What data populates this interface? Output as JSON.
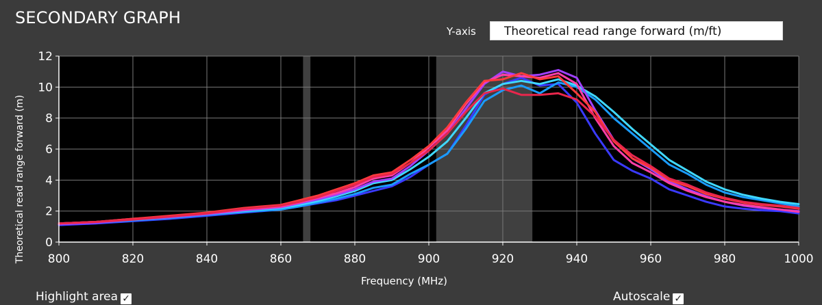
{
  "panel": {
    "title": "SECONDARY GRAPH",
    "yaxis_label": "Y-axis",
    "yaxis_selected": "Theoretical read range forward (m/ft)",
    "highlight_label": "Highlight area",
    "highlight_checked": true,
    "autoscale_label": "Autoscale",
    "autoscale_checked": true
  },
  "chart_data": {
    "type": "line",
    "xlabel": "Frequency (MHz)",
    "ylabel": "Theoretical read range forward (m)",
    "xlim": [
      800,
      1000
    ],
    "ylim": [
      0,
      12
    ],
    "xticks": [
      800,
      820,
      840,
      860,
      880,
      900,
      920,
      940,
      960,
      980,
      1000
    ],
    "yticks": [
      0,
      2,
      4,
      6,
      8,
      10,
      12
    ],
    "grid": true,
    "highlight_bands": [
      [
        866,
        868
      ],
      [
        902,
        928
      ]
    ],
    "x": [
      800,
      810,
      820,
      830,
      840,
      850,
      860,
      865,
      870,
      875,
      880,
      885,
      890,
      895,
      900,
      905,
      910,
      915,
      920,
      925,
      930,
      935,
      940,
      945,
      950,
      955,
      960,
      965,
      970,
      975,
      980,
      985,
      990,
      995,
      1000
    ],
    "series": [
      {
        "color": "#3a3aff",
        "values": [
          1.1,
          1.2,
          1.35,
          1.5,
          1.7,
          1.9,
          2.1,
          2.3,
          2.5,
          2.7,
          3.0,
          3.3,
          3.6,
          4.2,
          5.0,
          5.7,
          7.5,
          9.5,
          10.2,
          10.6,
          10.1,
          10.2,
          9.0,
          7.0,
          5.3,
          4.6,
          4.1,
          3.4,
          3.0,
          2.6,
          2.3,
          2.15,
          2.05,
          2.0,
          1.85
        ]
      },
      {
        "color": "#1a9cff",
        "values": [
          1.15,
          1.25,
          1.4,
          1.55,
          1.75,
          1.95,
          2.1,
          2.3,
          2.55,
          2.8,
          3.1,
          3.5,
          3.7,
          4.4,
          5.0,
          5.7,
          7.3,
          9.1,
          9.8,
          10.1,
          9.6,
          10.3,
          10.0,
          9.2,
          8.0,
          7.0,
          6.0,
          5.0,
          4.4,
          3.7,
          3.2,
          2.9,
          2.7,
          2.5,
          2.3
        ]
      },
      {
        "color": "#40d8ff",
        "values": [
          1.2,
          1.3,
          1.45,
          1.6,
          1.8,
          2.0,
          2.2,
          2.4,
          2.65,
          2.95,
          3.3,
          3.8,
          4.0,
          4.7,
          5.5,
          6.5,
          8.0,
          9.6,
          10.2,
          10.4,
          10.2,
          10.5,
          10.1,
          9.4,
          8.4,
          7.3,
          6.3,
          5.3,
          4.6,
          3.9,
          3.4,
          3.05,
          2.8,
          2.6,
          2.45
        ]
      },
      {
        "color": "#a040ff",
        "values": [
          1.15,
          1.25,
          1.45,
          1.6,
          1.8,
          2.05,
          2.25,
          2.5,
          2.75,
          3.05,
          3.4,
          3.9,
          4.1,
          4.9,
          5.9,
          7.0,
          8.6,
          10.2,
          11.0,
          10.7,
          10.8,
          11.1,
          10.6,
          8.5,
          6.6,
          5.4,
          4.7,
          3.9,
          3.4,
          2.95,
          2.6,
          2.35,
          2.2,
          2.1,
          2.0
        ]
      },
      {
        "color": "#ff3fa8",
        "values": [
          1.2,
          1.3,
          1.5,
          1.65,
          1.85,
          2.1,
          2.3,
          2.55,
          2.85,
          3.15,
          3.55,
          4.1,
          4.3,
          5.1,
          6.1,
          7.2,
          8.9,
          10.3,
          10.8,
          10.7,
          10.6,
          10.9,
          10.2,
          8.0,
          6.2,
          5.1,
          4.5,
          3.8,
          3.3,
          2.9,
          2.6,
          2.4,
          2.25,
          2.1,
          1.95
        ]
      },
      {
        "color": "#ff3b3b",
        "values": [
          1.2,
          1.3,
          1.5,
          1.7,
          1.9,
          2.2,
          2.4,
          2.7,
          3.0,
          3.4,
          3.8,
          4.3,
          4.5,
          5.3,
          6.2,
          7.4,
          9.0,
          10.4,
          10.5,
          10.9,
          10.5,
          10.7,
          9.6,
          8.4,
          6.5,
          5.4,
          4.8,
          4.0,
          3.6,
          3.1,
          2.8,
          2.55,
          2.4,
          2.3,
          2.15
        ]
      },
      {
        "color": "#e8264c",
        "values": [
          1.2,
          1.3,
          1.45,
          1.65,
          1.85,
          2.15,
          2.35,
          2.6,
          2.9,
          3.3,
          3.7,
          4.2,
          4.4,
          5.1,
          5.9,
          7.0,
          8.4,
          9.6,
          9.9,
          9.5,
          9.5,
          9.6,
          9.2,
          8.1,
          6.6,
          5.6,
          4.9,
          4.1,
          3.7,
          3.2,
          2.85,
          2.6,
          2.45,
          2.35,
          2.2
        ]
      }
    ]
  }
}
